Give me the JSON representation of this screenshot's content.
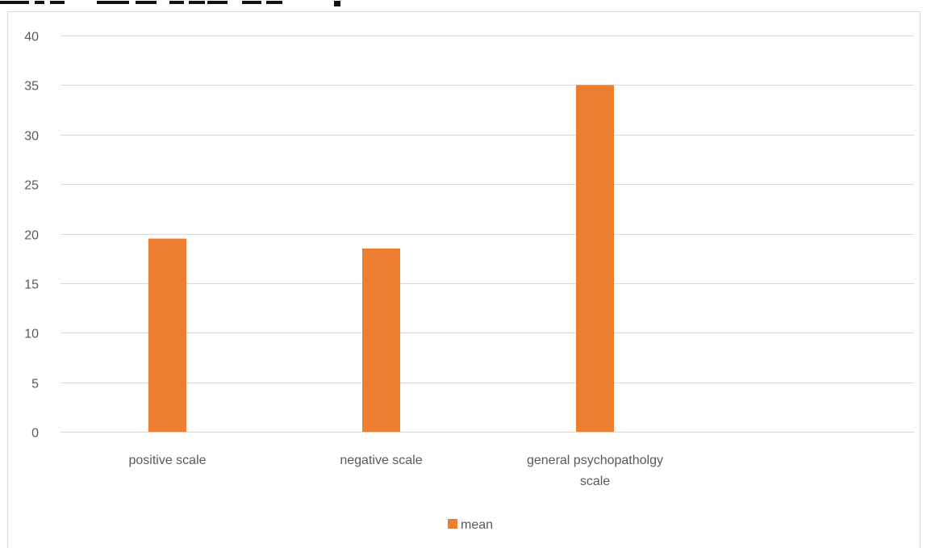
{
  "chart_data": {
    "type": "bar",
    "title": "",
    "categories": [
      [
        "positive scale"
      ],
      [
        "negative scale"
      ],
      [
        "general psychopatholgy",
        "scale"
      ]
    ],
    "series": [
      {
        "name": "mean",
        "values": [
          19.5,
          18.5,
          35
        ],
        "color": "#ed7d31"
      }
    ],
    "ylim": [
      0,
      40
    ],
    "yticks": [
      0,
      5,
      10,
      15,
      20,
      25,
      30,
      35,
      40
    ],
    "grid": true,
    "legend": "bottom",
    "xlabel": "",
    "ylabel": ""
  }
}
